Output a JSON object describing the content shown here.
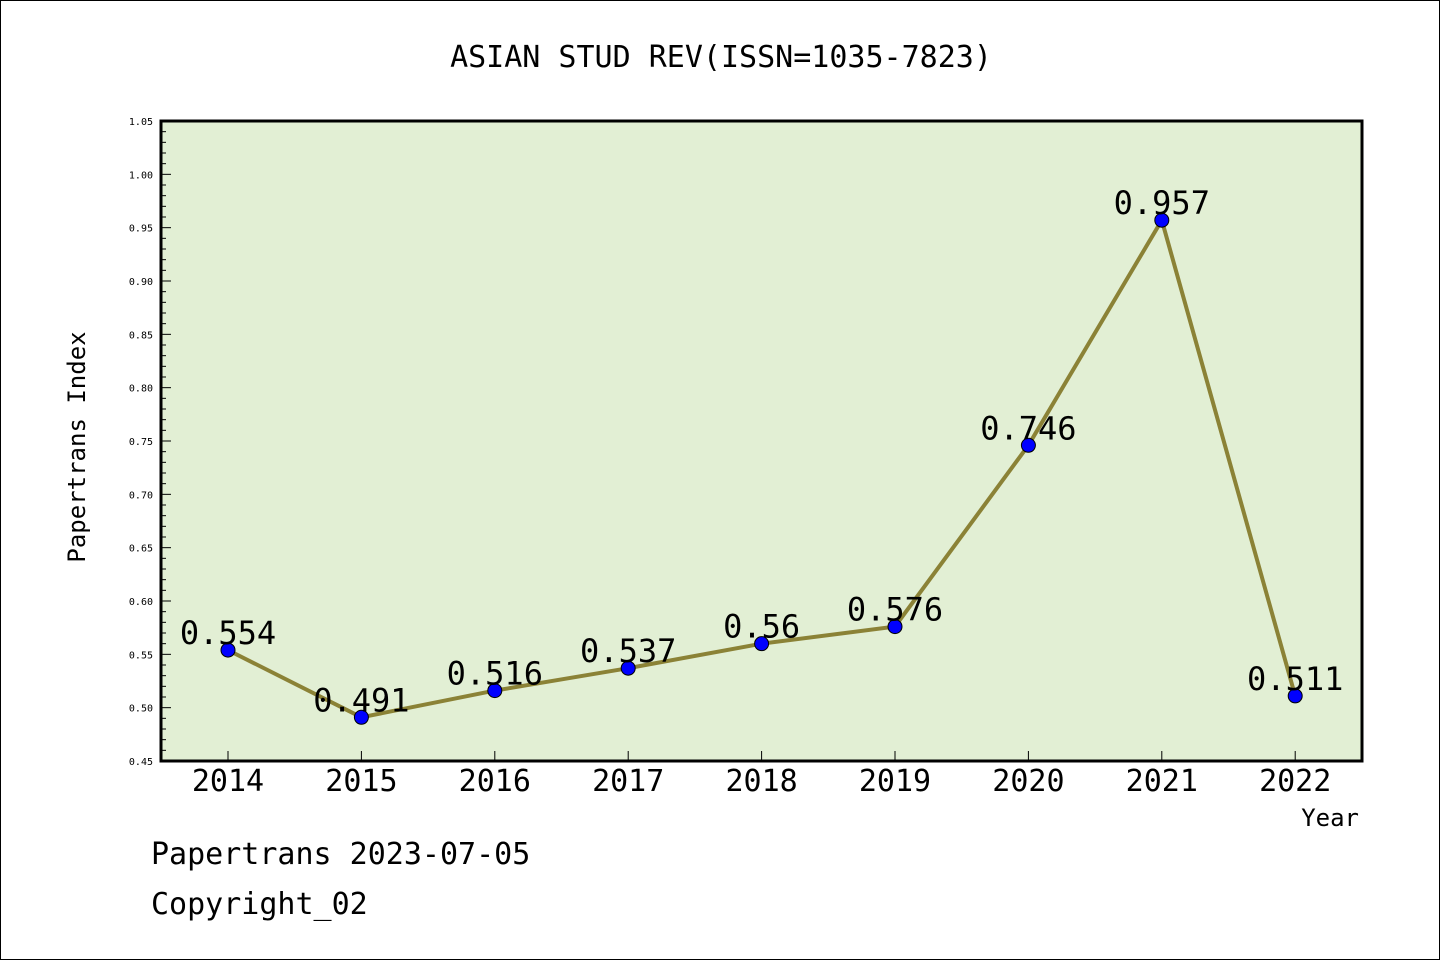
{
  "chart_data": {
    "type": "line",
    "title": "ASIAN STUD REV(ISSN=1035-7823)",
    "xlabel": "Year",
    "ylabel": "Papertrans Index",
    "categories": [
      "2014",
      "2015",
      "2016",
      "2017",
      "2018",
      "2019",
      "2020",
      "2021",
      "2022"
    ],
    "values": [
      0.554,
      0.491,
      0.516,
      0.537,
      0.56,
      0.576,
      0.746,
      0.957,
      0.511
    ],
    "data_labels": [
      "0.554",
      "0.491",
      "0.516",
      "0.537",
      "0.56",
      "0.576",
      "0.746",
      "0.957",
      "0.511"
    ],
    "ylim": [
      0.45,
      1.05
    ],
    "yticks": [
      "0.45",
      "0.50",
      "0.55",
      "0.60",
      "0.65",
      "0.70",
      "0.75",
      "0.80",
      "0.85",
      "0.90",
      "0.95",
      "1.00",
      "1.05"
    ],
    "grid": false,
    "colors": {
      "plot_background": "#e2efd4",
      "line": "#8b8236",
      "marker": "#0000ff"
    }
  },
  "footer": {
    "line1": "Papertrans 2023-07-05",
    "line2": "Copyright_02"
  }
}
